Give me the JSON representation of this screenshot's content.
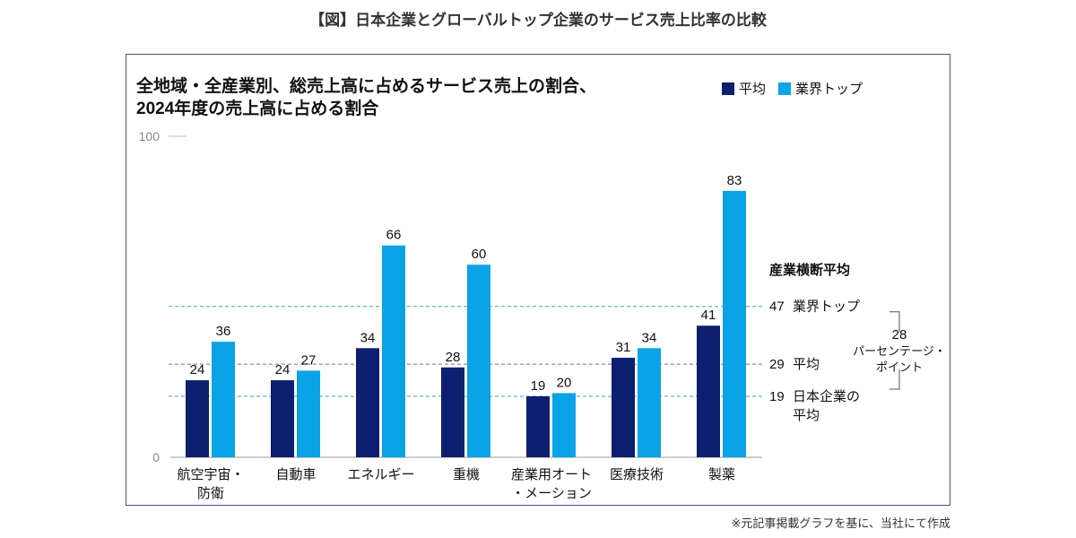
{
  "figure_title": "【図】日本企業とグローバルトップ企業のサービス売上比率の比較",
  "footnote": "※元記事掲載グラフを基に、当社にて作成",
  "chart_data": {
    "type": "bar",
    "title_lines": [
      "全地域・全産業別、総売上高に占めるサービス売上の割合、",
      "2024年度の売上高に占める割合"
    ],
    "categories": [
      [
        "航空宇宙・",
        "防衛"
      ],
      [
        "自動車"
      ],
      [
        "エネルギー"
      ],
      [
        "重機"
      ],
      [
        "産業用オート",
        "・メーション"
      ],
      [
        "医療技術"
      ],
      [
        "製薬"
      ]
    ],
    "series": [
      {
        "name": "平均",
        "color": "#0d1f6e",
        "values": [
          24,
          24,
          34,
          28,
          19,
          31,
          41
        ]
      },
      {
        "name": "業界トップ",
        "color": "#0aa3e6",
        "values": [
          36,
          27,
          66,
          60,
          20,
          34,
          83
        ]
      }
    ],
    "ylim": [
      0,
      100
    ],
    "y_ticks": [
      0,
      100
    ],
    "grid": false,
    "legend_position": "top-right",
    "reference_lines": {
      "heading": "産業横断平均",
      "lines": [
        {
          "value": 47,
          "label": [
            "業界トップ"
          ],
          "color": "#5fb8c9"
        },
        {
          "value": 29,
          "label": [
            "平均"
          ],
          "color": "#999999"
        },
        {
          "value": 19,
          "label": [
            "日本企業の",
            "平均"
          ],
          "color": "#5fb8c9"
        }
      ],
      "gap_annotation": [
        "28",
        "パーセンテージ・",
        "ポイント"
      ]
    }
  }
}
